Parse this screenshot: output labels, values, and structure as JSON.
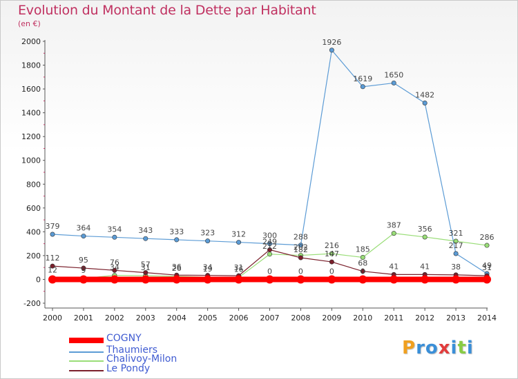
{
  "title": "Evolution du Montant de la Dette par Habitant",
  "subtitle": "(en €)",
  "logo": "Proxiti",
  "chart_data": {
    "type": "line",
    "title": "Evolution du Montant de la Dette par Habitant",
    "ylabel": "(en €)",
    "xlabel": "",
    "x": [
      "2000",
      "2001",
      "2002",
      "2003",
      "2004",
      "2005",
      "2006",
      "2007",
      "2008",
      "2009",
      "2010",
      "2011",
      "2012",
      "2013",
      "2014"
    ],
    "ylim": [
      -200,
      2000
    ],
    "yticks": [
      "-200",
      "0",
      "200",
      "400",
      "600",
      "800",
      "1000",
      "1200",
      "1400",
      "1600",
      "1800",
      "2000"
    ],
    "grid": false,
    "legend_position": "bottom-left",
    "series": [
      {
        "name": "COGNY",
        "color": "#ff0000",
        "values": [
          0,
          0,
          0,
          0,
          0,
          0,
          0,
          0,
          0,
          0,
          0,
          0,
          0,
          0,
          0
        ],
        "labels": [
          "",
          "",
          "",
          "",
          "",
          "",
          "",
          "0",
          "0",
          "0",
          "0",
          "",
          "",
          "",
          ""
        ]
      },
      {
        "name": "Thaumiers",
        "color": "#5b9bd5",
        "values": [
          379,
          364,
          354,
          343,
          333,
          323,
          312,
          300,
          288,
          1926,
          1619,
          1650,
          1482,
          217,
          49
        ],
        "labels": [
          "379",
          "364",
          "354",
          "343",
          "333",
          "323",
          "312",
          "300",
          "288",
          "1926",
          "1619",
          "1650",
          "1482",
          "217",
          "49"
        ]
      },
      {
        "name": "Chalivoy-Milon",
        "color": "#99dd77",
        "values": [
          12,
          9,
          34,
          31,
          26,
          19,
          16,
          212,
          202,
          216,
          185,
          387,
          356,
          321,
          286
        ],
        "labels": [
          "12",
          "9",
          "34",
          "31",
          "26",
          "19",
          "16",
          "212",
          "202",
          "216",
          "185",
          "387",
          "356",
          "321",
          "286"
        ]
      },
      {
        "name": "Le Pondy",
        "color": "#7a1f2b",
        "values": [
          112,
          95,
          76,
          57,
          36,
          34,
          31,
          249,
          182,
          147,
          68,
          41,
          41,
          38,
          31
        ],
        "labels": [
          "112",
          "95",
          "76",
          "57",
          "36",
          "34",
          "31",
          "249",
          "182",
          "147",
          "68",
          "41",
          "41",
          "38",
          "31"
        ]
      }
    ]
  }
}
